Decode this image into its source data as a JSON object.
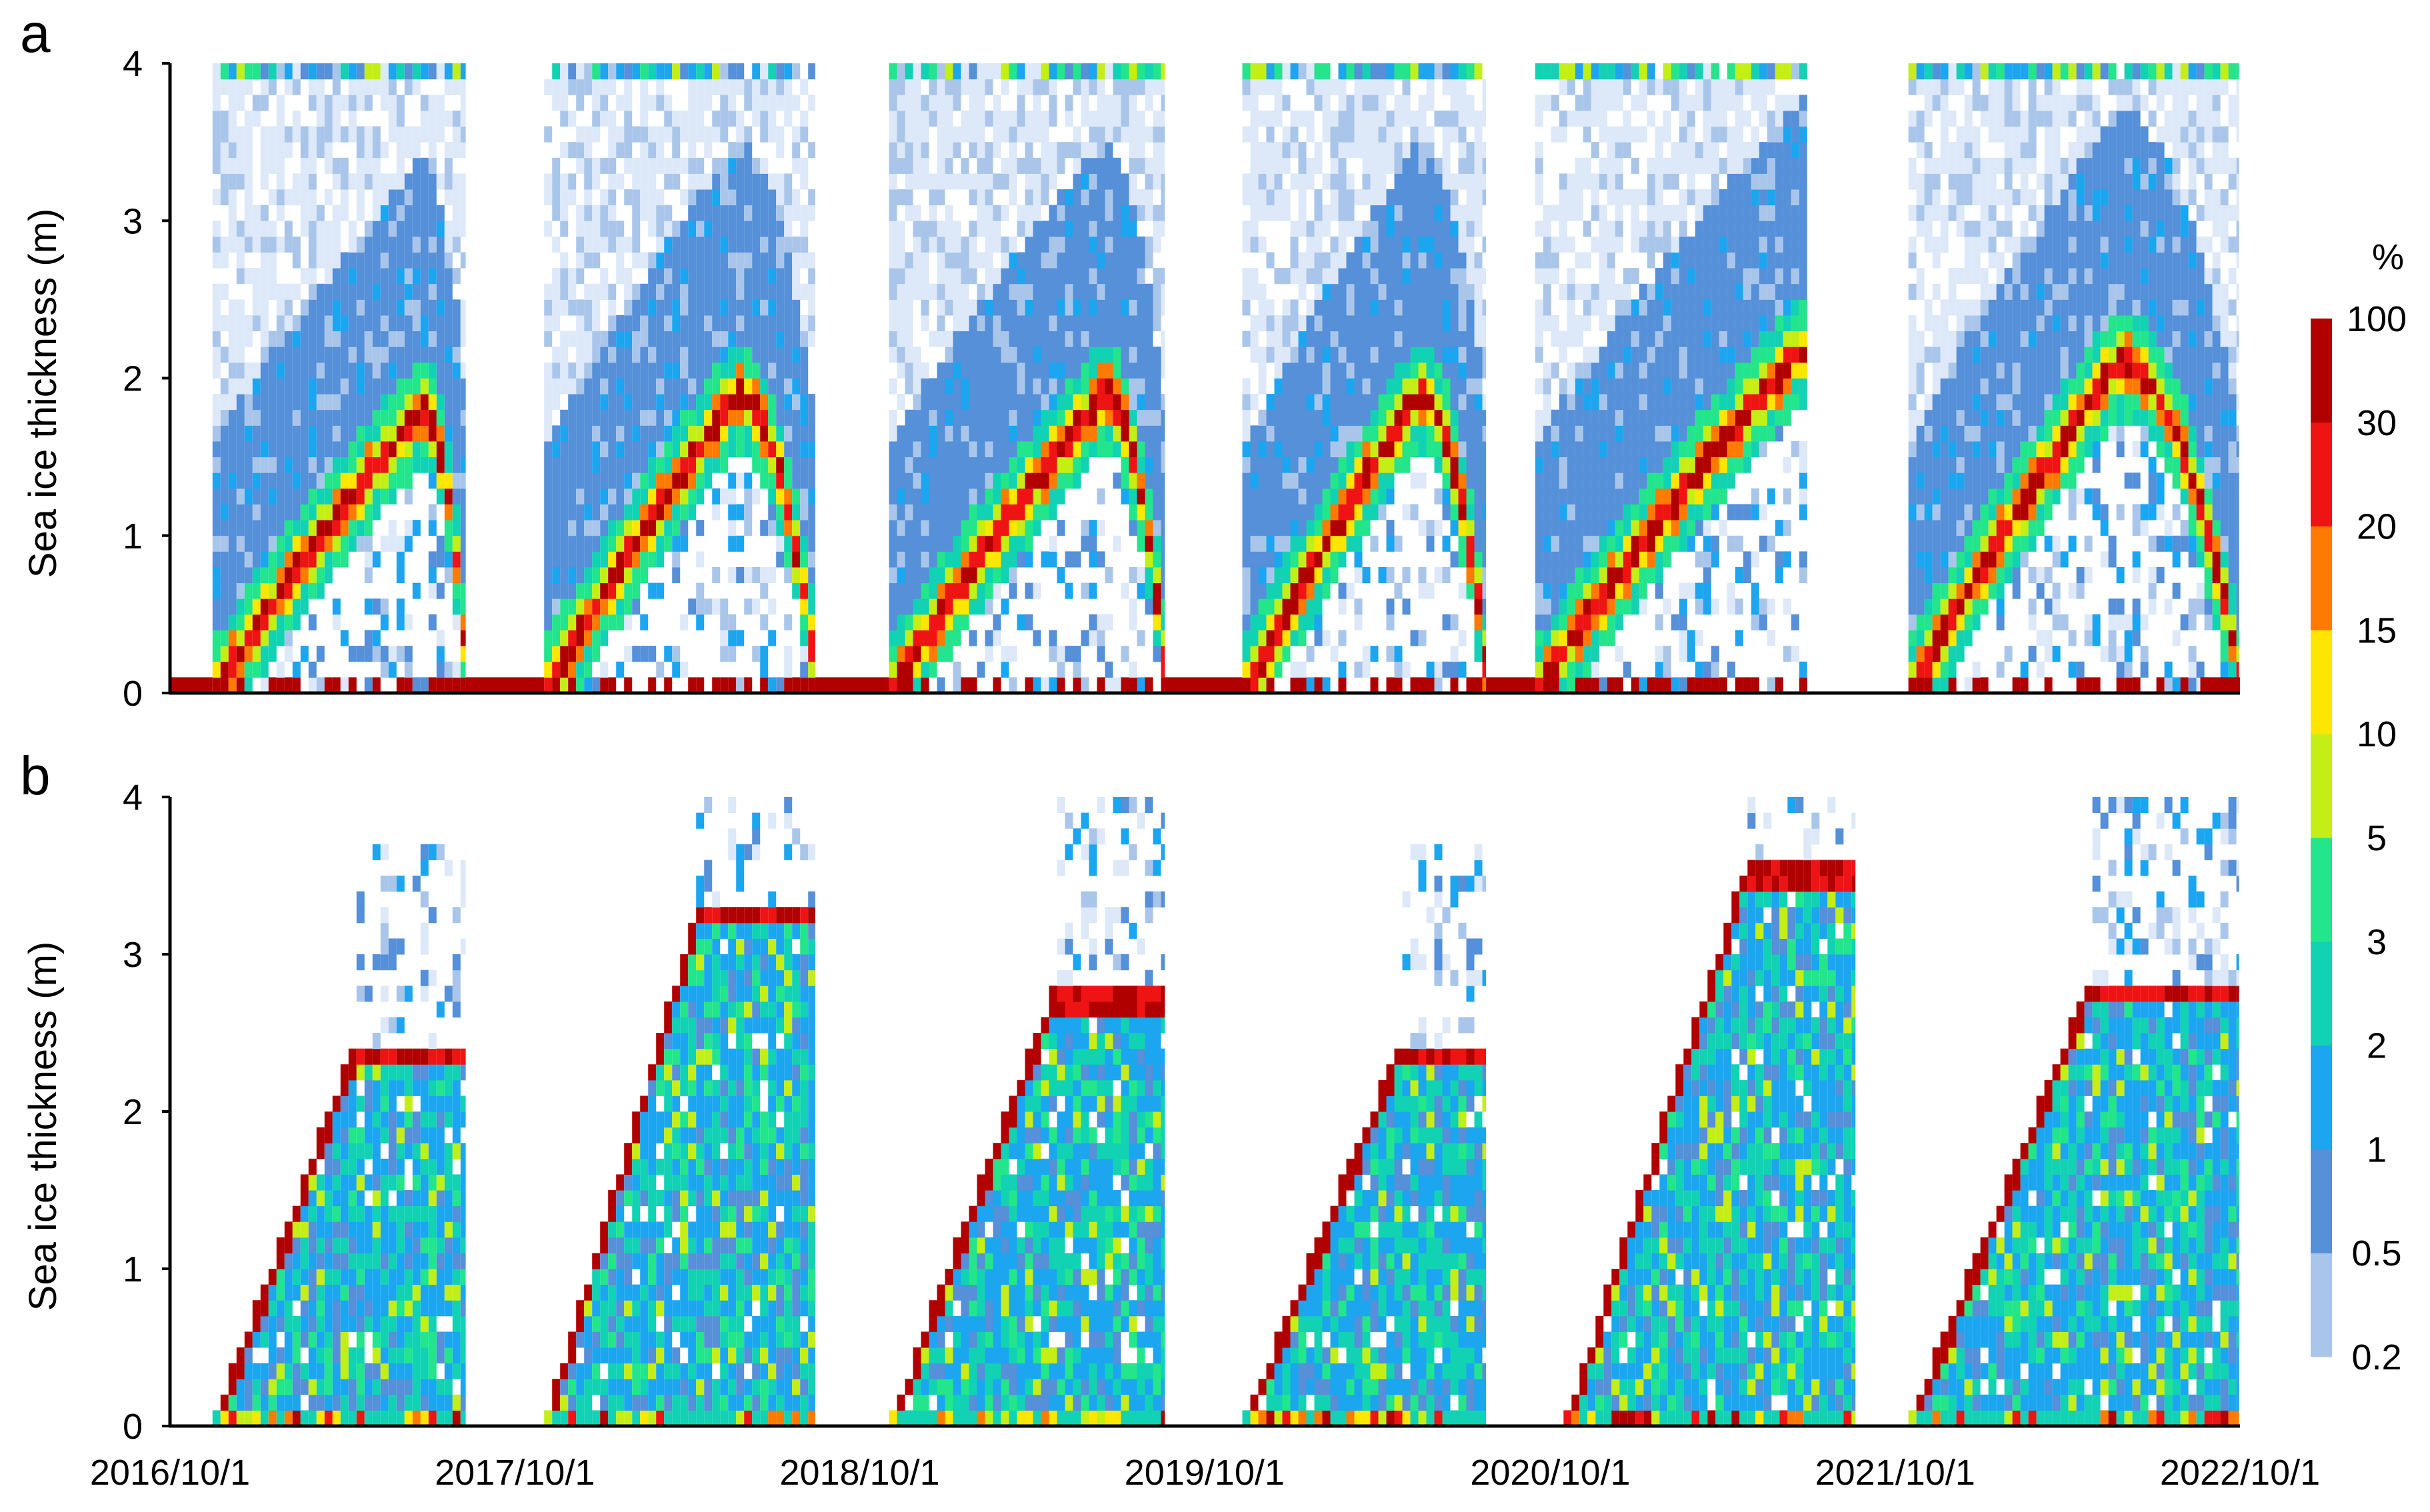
{
  "chart_data": {
    "colorbar": {
      "unit": "%",
      "levels": [
        "0.2",
        "0.5",
        "1",
        "2",
        "3",
        "5",
        "10",
        "15",
        "20",
        "30",
        "100"
      ],
      "colors": [
        "#dde8f8",
        "#a9c6ea",
        "#5590d8",
        "#1ca6f0",
        "#12d2b4",
        "#22e58c",
        "#c4ee16",
        "#ffe600",
        "#ff7a00",
        "#ee1414",
        "#b00000"
      ]
    },
    "panels": [
      {
        "label": "a",
        "type": "heatmap",
        "ylabel": "Sea ice thickness (m)",
        "yticks": [
          "0",
          "1",
          "2",
          "3",
          "4"
        ],
        "ylim": [
          0,
          4
        ],
        "seasons": [
          {
            "start": "2016-11-15",
            "end": "2017-08-10",
            "peak": 1.8,
            "peak_date": "2017-06-20"
          },
          {
            "start": "2017-11-01",
            "end": "2018-08-15",
            "peak": 1.9,
            "peak_date": "2018-05-20"
          },
          {
            "start": "2018-11-01",
            "end": "2019-08-20",
            "peak": 1.9,
            "peak_date": "2019-06-10"
          },
          {
            "start": "2019-11-10",
            "end": "2020-07-25",
            "peak": 1.9,
            "peak_date": "2020-05-10"
          },
          {
            "start": "2020-09-15",
            "end": "2021-06-30",
            "peak": 2.2,
            "peak_date": "2021-06-20"
          },
          {
            "start": "2021-10-15",
            "end": "2022-09-30",
            "peak": 2.1,
            "peak_date": "2022-05-20"
          }
        ]
      },
      {
        "label": "b",
        "type": "heatmap",
        "ylabel": "Sea ice thickness (m)",
        "yticks": [
          "0",
          "1",
          "2",
          "3",
          "4"
        ],
        "ylim": [
          0,
          4
        ],
        "seasons": [
          {
            "start": "2016-11-15",
            "end": "2017-08-10",
            "peak": 2.35,
            "peak_date": "2017-04-10"
          },
          {
            "start": "2017-11-01",
            "end": "2018-08-15",
            "peak": 3.25,
            "peak_date": "2018-04-10"
          },
          {
            "start": "2018-11-01",
            "end": "2019-08-20",
            "peak": 2.7,
            "peak_date": "2019-04-20"
          },
          {
            "start": "2019-11-10",
            "end": "2020-07-25",
            "peak": 2.35,
            "peak_date": "2020-04-20"
          },
          {
            "start": "2020-10-15",
            "end": "2021-08-20",
            "peak": 3.45,
            "peak_date": "2021-04-20"
          },
          {
            "start": "2021-10-15",
            "end": "2022-09-30",
            "peak": 2.75,
            "peak_date": "2022-04-20"
          }
        ]
      }
    ],
    "xticks": [
      "2016/10/1",
      "2017/10/1",
      "2018/10/1",
      "2019/10/1",
      "2020/10/1",
      "2021/10/1",
      "2022/10/1"
    ],
    "xlim": [
      "2016-10-01",
      "2022-10-01"
    ]
  }
}
